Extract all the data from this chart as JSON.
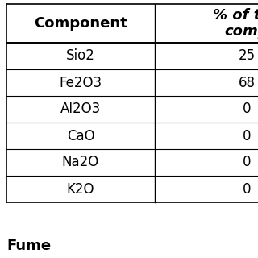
{
  "title_row1": "% of the",
  "title_row2": "comp",
  "col1_header": "Component",
  "rows": [
    [
      "Sio2",
      "25"
    ],
    [
      "Fe2O3",
      "68"
    ],
    [
      "Al2O3",
      "0"
    ],
    [
      "CaO",
      "0"
    ],
    [
      "Na2O",
      "0"
    ],
    [
      "K2O",
      "0"
    ]
  ],
  "footer_text": "Fume",
  "bg_color": "#ffffff",
  "text_color": "#000000",
  "header_fontsize": 13,
  "cell_fontsize": 12,
  "footer_fontsize": 13,
  "fig_width": 3.2,
  "fig_height": 3.2,
  "dpi": 100
}
